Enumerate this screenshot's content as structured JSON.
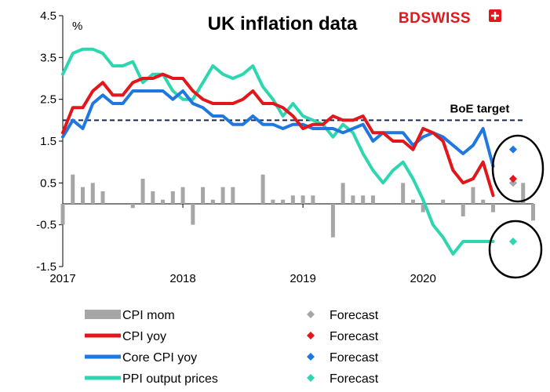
{
  "brand": {
    "name": "BDSWISS"
  },
  "chart_data": {
    "type": "line",
    "title": "UK inflation data",
    "unit": "%",
    "ylim": [
      -1.5,
      4.5
    ],
    "yticks": [
      "4.5",
      "3.5",
      "2.5",
      "1.5",
      "0.5",
      "-0.5",
      "-1.5"
    ],
    "ytick_values": [
      4.5,
      3.5,
      2.5,
      1.5,
      0.5,
      -0.5,
      -1.5
    ],
    "xticks": [
      "2017",
      "2018",
      "2019",
      "2020"
    ],
    "xtick_values": [
      2017,
      2018,
      2019,
      2020
    ],
    "xlim": [
      2017,
      2020.92
    ],
    "reference_line": {
      "label": "BoE  target",
      "value": 2.0
    },
    "series": [
      {
        "name": "CPI mom",
        "kind": "bar",
        "color": "#a6a6a6",
        "values": [
          -0.5,
          0.7,
          0.4,
          0.5,
          0.3,
          0.0,
          0.0,
          -0.1,
          0.6,
          0.3,
          0.1,
          0.3,
          0.4,
          -0.5,
          0.4,
          0.1,
          0.4,
          0.4,
          0.0,
          0.0,
          0.7,
          0.1,
          0.1,
          0.2,
          0.2,
          0.2,
          0.0,
          -0.8,
          0.5,
          0.2,
          0.2,
          0.2,
          0.0,
          0.0,
          0.5,
          0.1,
          -0.2,
          0.0,
          0.1,
          0.0,
          -0.3,
          0.4,
          0.1,
          -0.2,
          0.0,
          0.0,
          0.5,
          -0.4
        ]
      },
      {
        "name": "CPI yoy",
        "kind": "line",
        "color": "#e3161b",
        "values": [
          1.7,
          2.3,
          2.3,
          2.7,
          2.9,
          2.6,
          2.6,
          2.9,
          3.0,
          3.0,
          3.1,
          3.0,
          3.0,
          2.7,
          2.5,
          2.4,
          2.4,
          2.4,
          2.5,
          2.7,
          2.4,
          2.4,
          2.3,
          2.1,
          1.8,
          1.9,
          1.9,
          2.1,
          2.0,
          2.0,
          2.1,
          1.7,
          1.7,
          1.5,
          1.5,
          1.3,
          1.8,
          1.7,
          1.5,
          0.8,
          0.5,
          0.6,
          1.0,
          0.2
        ]
      },
      {
        "name": "Core CPI yoy",
        "kind": "line",
        "color": "#1f77e0",
        "values": [
          1.6,
          2.0,
          1.8,
          2.4,
          2.6,
          2.4,
          2.4,
          2.7,
          2.7,
          2.7,
          2.7,
          2.5,
          2.7,
          2.4,
          2.3,
          2.1,
          2.1,
          1.9,
          1.9,
          2.1,
          1.9,
          1.9,
          1.8,
          1.9,
          1.9,
          1.8,
          1.8,
          1.8,
          1.7,
          1.8,
          1.9,
          1.5,
          1.7,
          1.7,
          1.7,
          1.4,
          1.6,
          1.7,
          1.6,
          1.4,
          1.2,
          1.4,
          1.8,
          0.9
        ]
      },
      {
        "name": "PPI output prices",
        "kind": "line",
        "color": "#2ed6b0",
        "values": [
          3.1,
          3.6,
          3.7,
          3.7,
          3.6,
          3.3,
          3.3,
          3.4,
          2.9,
          3.1,
          3.1,
          2.7,
          2.5,
          2.5,
          2.9,
          3.3,
          3.1,
          3.0,
          3.1,
          3.3,
          2.8,
          2.5,
          2.1,
          2.4,
          2.1,
          2.0,
          1.9,
          1.6,
          1.9,
          1.7,
          1.2,
          0.8,
          0.5,
          0.8,
          1.0,
          0.6,
          0.1,
          -0.5,
          -0.8,
          -1.2,
          -0.9,
          -0.9,
          -0.9,
          -0.9
        ]
      }
    ],
    "forecasts": [
      {
        "name": "Forecast",
        "color": "#a6a6a6",
        "value": 0.5
      },
      {
        "name": "Forecast",
        "color": "#e3161b",
        "value": 0.6
      },
      {
        "name": "Forecast",
        "color": "#1f77e0",
        "value": 1.3
      },
      {
        "name": "Forecast",
        "color": "#2ed6b0",
        "value": -0.9
      }
    ],
    "legend": {
      "position": "bottom"
    }
  }
}
